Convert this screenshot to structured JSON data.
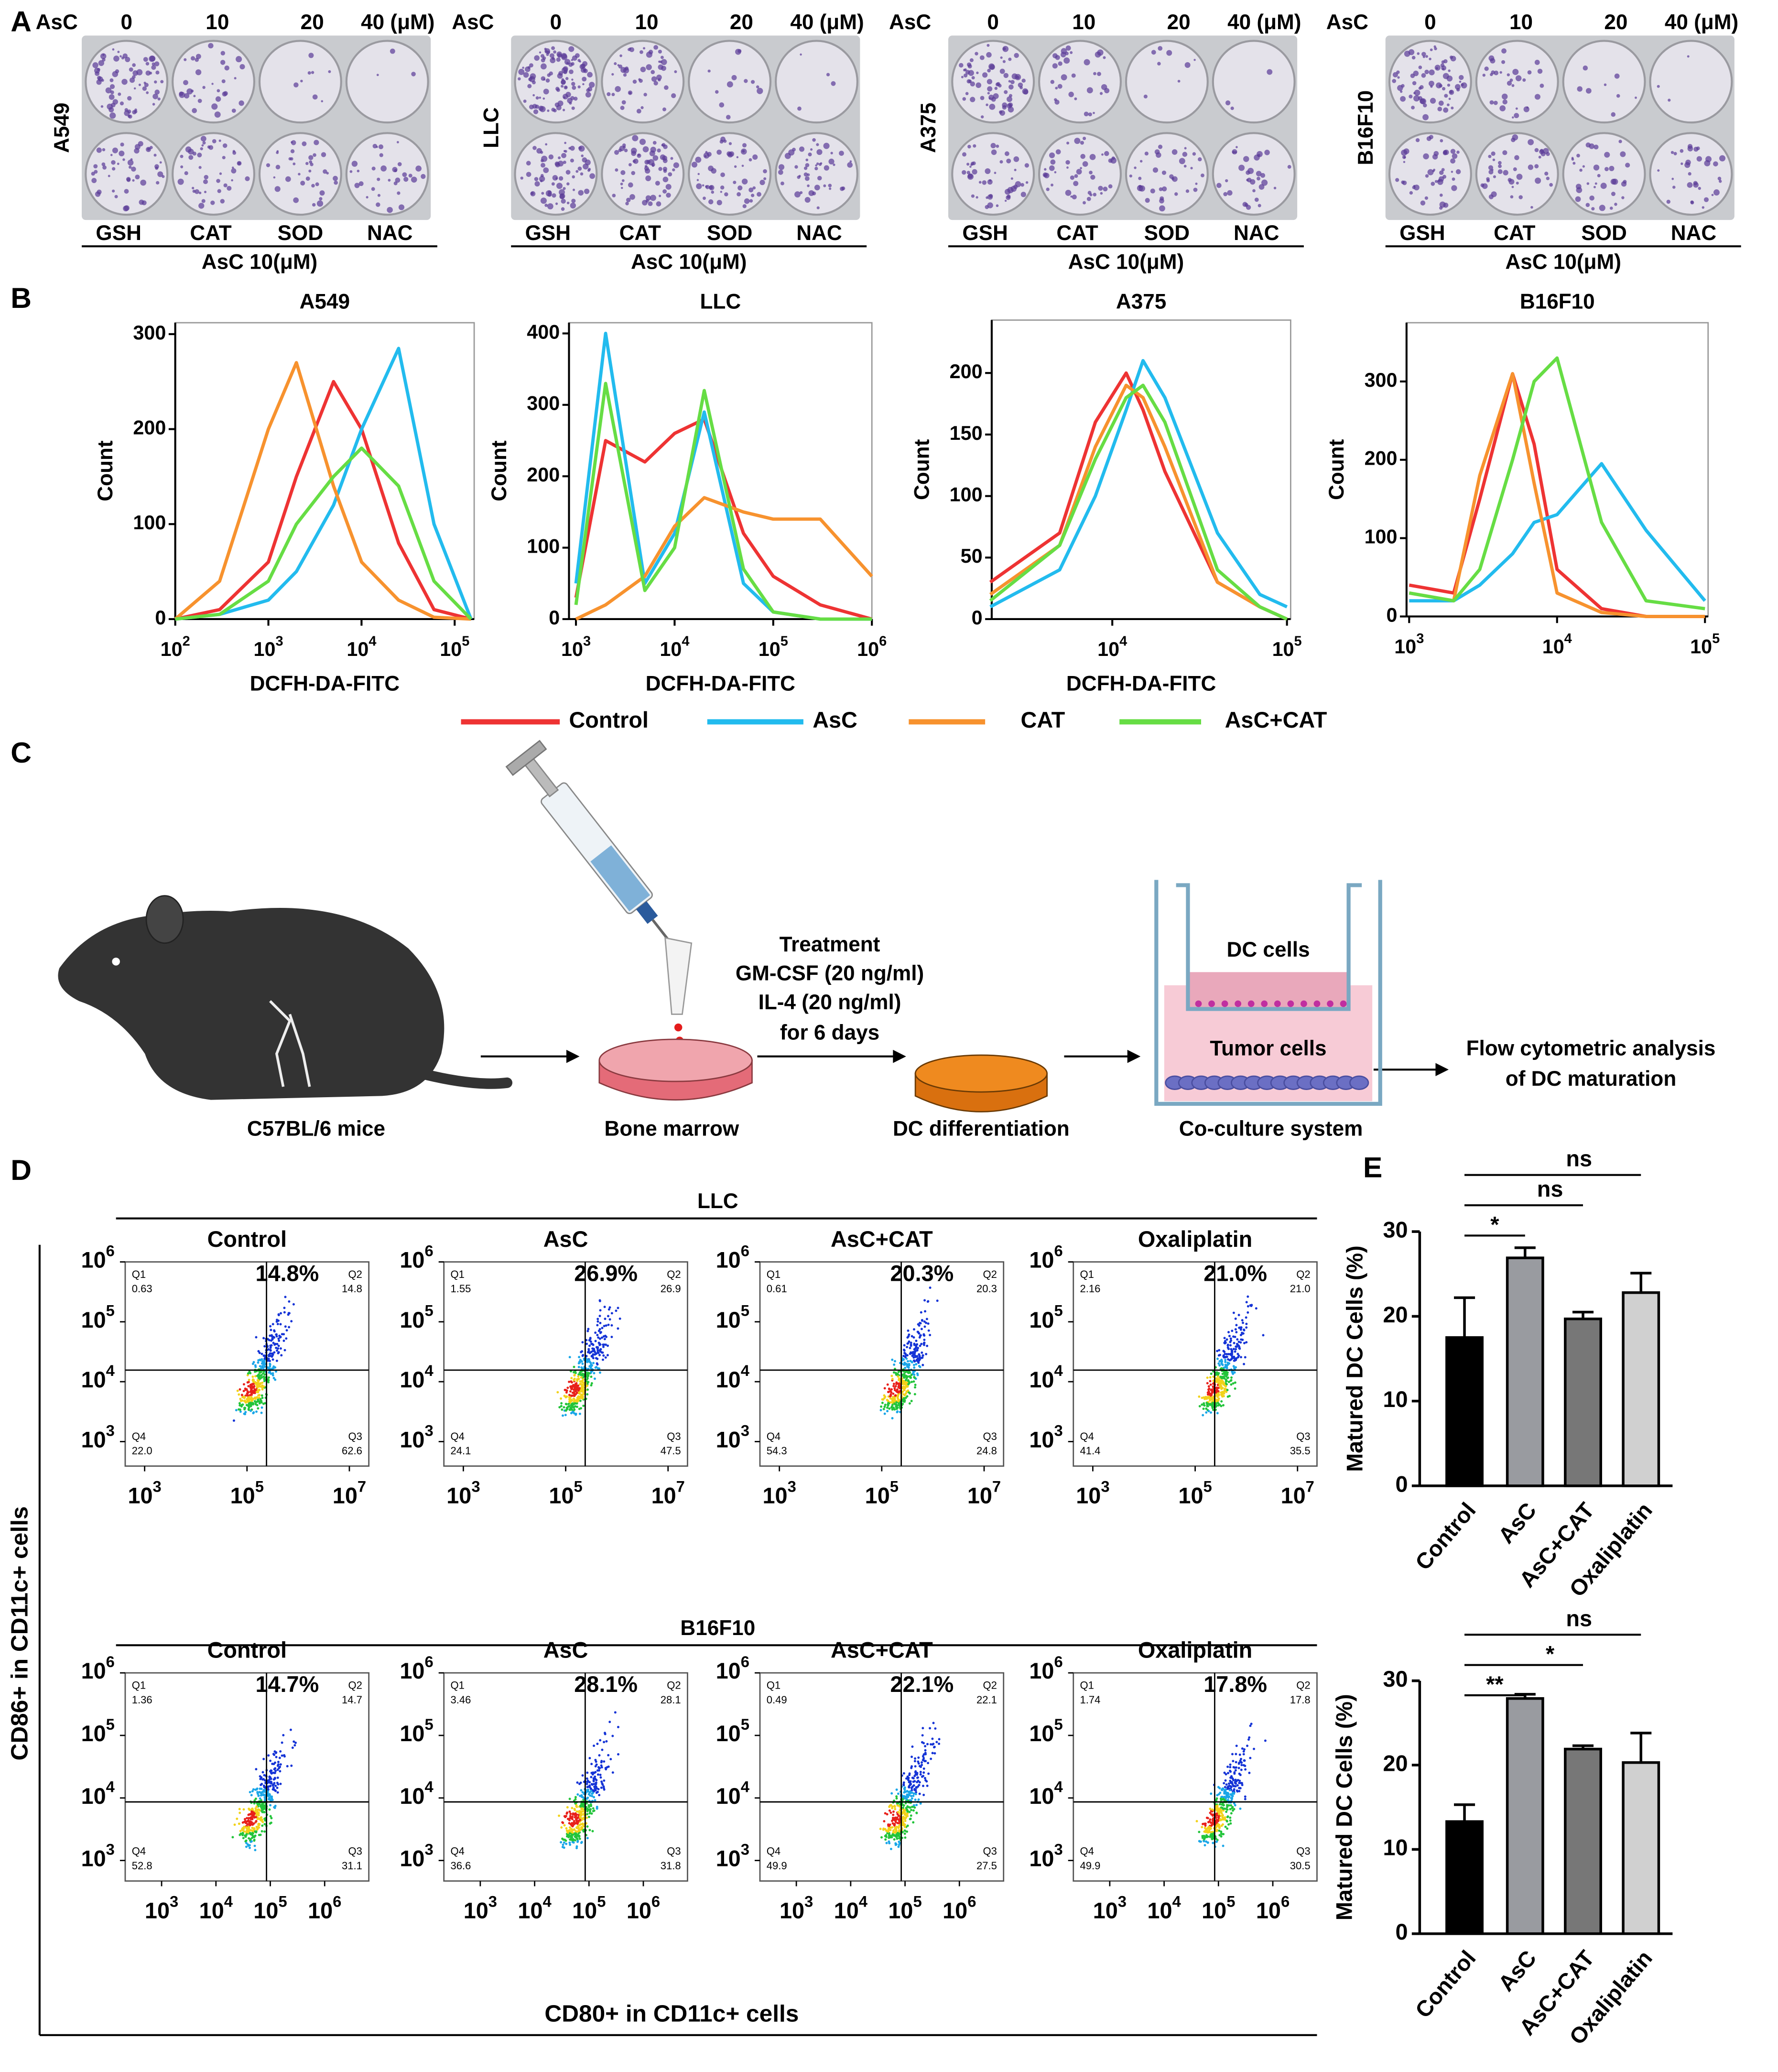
{
  "panel_A": {
    "label": "A",
    "treatment_label": "AsC",
    "doses": [
      "0",
      "10",
      "20",
      "40 (μM)"
    ],
    "rescue_agents": [
      "GSH",
      "CAT",
      "SOD",
      "NAC"
    ],
    "rescue_dose": "AsC 10(μM)",
    "cell_lines": [
      "A549",
      "LLC",
      "A375",
      "B16F10"
    ]
  },
  "panel_B": {
    "label": "B",
    "type": "line",
    "xscale": "log",
    "ylabel": "Count",
    "legend": [
      {
        "name": "Control",
        "color": "#ee3333"
      },
      {
        "name": "AsC",
        "color": "#22bbee"
      },
      {
        "name": "CAT",
        "color": "#f7922e"
      },
      {
        "name": "AsC+CAT",
        "color": "#66dd44"
      }
    ],
    "plots": [
      {
        "title": "A549",
        "xlabel": "DCFH-DA-FITC",
        "xlim": [
          100,
          162000
        ],
        "ylim": [
          0,
          312
        ],
        "yticks": [
          0,
          100,
          200,
          300
        ],
        "xticks": [
          {
            "value": 100,
            "base": "10",
            "exp": "2"
          },
          {
            "value": 1000,
            "base": "10",
            "exp": "3"
          },
          {
            "value": 10000,
            "base": "10",
            "exp": "4"
          },
          {
            "value": 100000,
            "base": "10",
            "exp": "5"
          }
        ],
        "x": [
          100,
          300,
          1000,
          2000,
          5000,
          10000,
          25000,
          60000,
          150000
        ],
        "series": [
          {
            "values": [
              0,
              10,
              60,
              150,
              250,
              200,
              80,
              10,
              0
            ]
          },
          {
            "values": [
              0,
              5,
              20,
              50,
              120,
              200,
              285,
              100,
              0
            ]
          },
          {
            "values": [
              0,
              40,
              200,
              270,
              140,
              60,
              20,
              2,
              0
            ]
          },
          {
            "values": [
              0,
              5,
              40,
              100,
              150,
              180,
              140,
              40,
              0
            ]
          }
        ]
      },
      {
        "title": "LLC",
        "xlabel": "DCFH-DA-FITC",
        "xlim": [
          850,
          1000000
        ],
        "ylim": [
          0,
          415
        ],
        "yticks": [
          0,
          100,
          200,
          300,
          400
        ],
        "xticks": [
          {
            "value": 1000,
            "base": "10",
            "exp": "3"
          },
          {
            "value": 10000,
            "base": "10",
            "exp": "4"
          },
          {
            "value": 100000,
            "base": "10",
            "exp": "5"
          },
          {
            "value": 1000000,
            "base": "10",
            "exp": "6"
          }
        ],
        "x": [
          1000,
          2000,
          5000,
          10000,
          20000,
          50000,
          100000,
          300000,
          1000000
        ],
        "series": [
          {
            "values": [
              30,
              250,
              220,
              260,
              280,
              120,
              60,
              20,
              0
            ]
          },
          {
            "values": [
              50,
              400,
              50,
              120,
              290,
              50,
              10,
              0,
              0
            ]
          },
          {
            "values": [
              0,
              20,
              60,
              130,
              170,
              150,
              140,
              140,
              60
            ]
          },
          {
            "values": [
              20,
              330,
              40,
              100,
              320,
              70,
              10,
              0,
              0
            ]
          }
        ]
      },
      {
        "title": "A375",
        "xlabel": "DCFH-DA-FITC",
        "xlim": [
          2040,
          105000
        ],
        "ylim": [
          0,
          243
        ],
        "yticks": [
          0,
          50,
          100,
          150,
          200
        ],
        "xticks": [
          {
            "value": 10000,
            "base": "10",
            "exp": "4"
          },
          {
            "value": 100000,
            "base": "10",
            "exp": "5"
          }
        ],
        "x": [
          2000,
          5000,
          8000,
          12000,
          15000,
          20000,
          40000,
          70000,
          100000
        ],
        "series": [
          {
            "values": [
              30,
              70,
              160,
              200,
              170,
              120,
              30,
              10,
              0
            ]
          },
          {
            "values": [
              10,
              40,
              100,
              170,
              210,
              180,
              70,
              20,
              10
            ]
          },
          {
            "values": [
              20,
              60,
              140,
              190,
              180,
              140,
              30,
              10,
              0
            ]
          },
          {
            "values": [
              15,
              60,
              130,
              180,
              190,
              160,
              40,
              10,
              0
            ]
          }
        ]
      },
      {
        "title": "B16F10",
        "xlim": [
          960,
          105000
        ],
        "ylim": [
          0,
          375
        ],
        "yticks": [
          0,
          100,
          200,
          300
        ],
        "xticks": [
          {
            "value": 1000,
            "base": "10",
            "exp": "3"
          },
          {
            "value": 10000,
            "base": "10",
            "exp": "4"
          },
          {
            "value": 100000,
            "base": "10",
            "exp": "5"
          }
        ],
        "x": [
          1000,
          2000,
          3000,
          5000,
          7000,
          10000,
          20000,
          40000,
          100000
        ],
        "series": [
          {
            "values": [
              40,
              30,
              150,
              310,
              220,
              60,
              10,
              0,
              0
            ]
          },
          {
            "values": [
              20,
              20,
              40,
              80,
              120,
              130,
              195,
              110,
              20
            ]
          },
          {
            "values": [
              30,
              20,
              180,
              310,
              170,
              30,
              5,
              0,
              0
            ]
          },
          {
            "values": [
              30,
              20,
              60,
              200,
              300,
              330,
              120,
              20,
              10
            ]
          }
        ]
      }
    ]
  },
  "panel_C": {
    "label": "C",
    "stages": [
      "C57BL/6 mice",
      "Bone marrow",
      "DC differentiation",
      "Co-culture system"
    ],
    "treatment": [
      "Treatment",
      "GM-CSF (20 ng/ml)",
      "IL-4 (20 ng/ml)",
      "for 6 days"
    ],
    "upper_chamber": "DC cells",
    "lower_chamber": "Tumor cells",
    "readout": [
      "Flow cytometric analysis",
      "of DC maturation"
    ]
  },
  "panel_D": {
    "label": "D",
    "ylabel": "CD86+ in CD11c+ cells",
    "xlabel": "CD80+ in CD11c+ cells",
    "quadrant_names": [
      "Q1",
      "Q2",
      "Q3",
      "Q4"
    ],
    "groups": [
      {
        "cell_line": "LLC",
        "xscale": "log",
        "yscale": "log",
        "xlim": [
          417,
          24000000
        ],
        "ylim": [
          390,
          1000000
        ],
        "xticks": [
          {
            "value": 1000,
            "base": "10",
            "exp": "3"
          },
          {
            "value": 100000,
            "base": "10",
            "exp": "5"
          },
          {
            "value": 10000000,
            "base": "10",
            "exp": "7"
          }
        ],
        "yticks": [
          {
            "value": 1000,
            "base": "10",
            "exp": "3"
          },
          {
            "value": 10000,
            "base": "10",
            "exp": "4"
          },
          {
            "value": 100000,
            "base": "10",
            "exp": "5"
          },
          {
            "value": 1000000,
            "base": "10",
            "exp": "6"
          }
        ],
        "plots": [
          {
            "title": "Control",
            "percent": "14.8%",
            "quadrants": [
              "0.63",
              "14.8",
              "62.6",
              "22.0"
            ]
          },
          {
            "title": "AsC",
            "percent": "26.9%",
            "quadrants": [
              "1.55",
              "26.9",
              "47.5",
              "24.1"
            ]
          },
          {
            "title": "AsC+CAT",
            "percent": "20.3%",
            "quadrants": [
              "0.61",
              "20.3",
              "24.8",
              "54.3"
            ]
          },
          {
            "title": "Oxaliplatin",
            "percent": "21.0%",
            "quadrants": [
              "2.16",
              "21.0",
              "35.5",
              "41.4"
            ]
          }
        ]
      },
      {
        "cell_line": "B16F10",
        "xscale": "log",
        "yscale": "log",
        "xlim": [
          214,
          6500000
        ],
        "ylim": [
          470,
          1000000
        ],
        "xticks": [
          {
            "value": 1000,
            "base": "10",
            "exp": "3"
          },
          {
            "value": 10000,
            "base": "10",
            "exp": "4"
          },
          {
            "value": 100000,
            "base": "10",
            "exp": "5"
          },
          {
            "value": 1000000,
            "base": "10",
            "exp": "6"
          }
        ],
        "yticks": [
          {
            "value": 1000,
            "base": "10",
            "exp": "3"
          },
          {
            "value": 10000,
            "base": "10",
            "exp": "4"
          },
          {
            "value": 100000,
            "base": "10",
            "exp": "5"
          },
          {
            "value": 1000000,
            "base": "10",
            "exp": "6"
          }
        ],
        "plots": [
          {
            "title": "Control",
            "percent": "14.7%",
            "quadrants": [
              "1.36",
              "14.7",
              "31.1",
              "52.8"
            ]
          },
          {
            "title": "AsC",
            "percent": "28.1%",
            "quadrants": [
              "3.46",
              "28.1",
              "31.8",
              "36.6"
            ]
          },
          {
            "title": "AsC+CAT",
            "percent": "22.1%",
            "quadrants": [
              "0.49",
              "22.1",
              "27.5",
              "49.9"
            ]
          },
          {
            "title": "Oxaliplatin",
            "percent": "17.8%",
            "quadrants": [
              "1.74",
              "17.8",
              "30.5",
              "49.9"
            ]
          }
        ]
      }
    ]
  },
  "panel_E": {
    "label": "E",
    "charts": [
      {
        "type": "bar",
        "ylabel": "Matured DC Cells (%)",
        "categories": [
          "Control",
          "AsC",
          "AsC+CAT",
          "Oxaliplatin"
        ],
        "values": [
          17.5,
          26.9,
          19.7,
          22.8
        ],
        "errors": [
          4.7,
          1.2,
          0.8,
          2.3
        ],
        "colors": [
          "#000000",
          "#999ba0",
          "#777777",
          "#d0d0d0"
        ],
        "ylim": [
          0,
          30
        ],
        "yticks": [
          0,
          10,
          20,
          30
        ],
        "significance": [
          {
            "from": 0,
            "to": 1,
            "label": "*"
          },
          {
            "from": 0,
            "to": 2,
            "label": "ns"
          },
          {
            "from": 0,
            "to": 3,
            "label": "ns"
          }
        ]
      },
      {
        "type": "bar",
        "ylabel": "Matured DC Cells (%)",
        "categories": [
          "Control",
          "AsC",
          "AsC+CAT",
          "Oxaliplatin"
        ],
        "values": [
          13.3,
          27.9,
          21.9,
          20.3
        ],
        "errors": [
          2.0,
          0.5,
          0.4,
          3.5
        ],
        "colors": [
          "#000000",
          "#999ba0",
          "#777777",
          "#d0d0d0"
        ],
        "ylim": [
          0,
          30
        ],
        "yticks": [
          0,
          10,
          20,
          30
        ],
        "significance": [
          {
            "from": 0,
            "to": 1,
            "label": "**"
          },
          {
            "from": 0,
            "to": 2,
            "label": "*"
          },
          {
            "from": 0,
            "to": 3,
            "label": "ns"
          }
        ]
      }
    ]
  }
}
